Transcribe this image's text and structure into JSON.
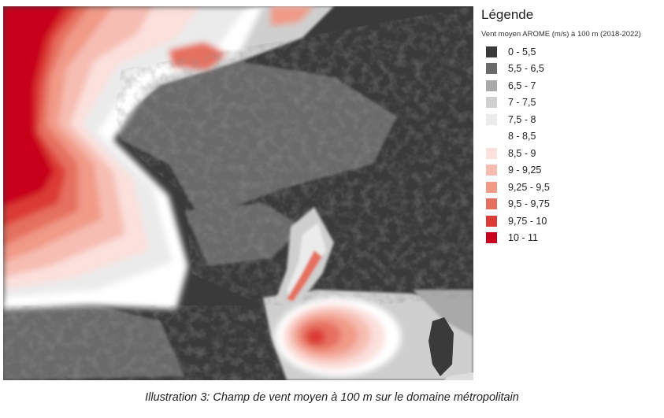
{
  "legend": {
    "title": "Légende",
    "subtitle": "Vent moyen AROME (m/s) à 100 m (2018-2022)",
    "items": [
      {
        "label": "0 - 5,5",
        "color": "#3a3a3a"
      },
      {
        "label": "5,5 - 6,5",
        "color": "#6a6a6a"
      },
      {
        "label": "6,5 - 7",
        "color": "#a9a9a9"
      },
      {
        "label": "7 - 7,5",
        "color": "#cfcfcf"
      },
      {
        "label": "7,5 - 8",
        "color": "#ebebeb"
      },
      {
        "label": "8 - 8,5",
        "color": "#ffffff"
      },
      {
        "label": "8,5 - 9",
        "color": "#fbe0dc"
      },
      {
        "label": "9 - 9,25",
        "color": "#f6bdb2"
      },
      {
        "label": "9,25 - 9,5",
        "color": "#f19a88"
      },
      {
        "label": "9,5 - 9,75",
        "color": "#e6705f"
      },
      {
        "label": "9,75 - 10",
        "color": "#dc3b35"
      },
      {
        "label": "10 - 11",
        "color": "#c8001d"
      }
    ]
  },
  "caption": "Illustration 3: Champ de vent moyen à 100 m sur le domaine métropolitain"
}
